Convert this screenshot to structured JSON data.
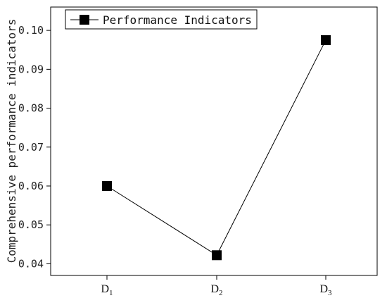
{
  "chart_data": {
    "type": "line",
    "categories": [
      {
        "base": "D",
        "sub": "1"
      },
      {
        "base": "D",
        "sub": "2"
      },
      {
        "base": "D",
        "sub": "3"
      }
    ],
    "series": [
      {
        "name": "Performance Indicators",
        "values": [
          0.06,
          0.0422,
          0.0975
        ]
      }
    ],
    "ylabel": "Comprehensive performance indicators",
    "xlabel": "",
    "ylim": [
      0.037,
      0.106
    ],
    "yticks": [
      0.04,
      0.05,
      0.06,
      0.07,
      0.08,
      0.09,
      0.1
    ],
    "ytick_labels": [
      "0.04",
      "0.05",
      "0.06",
      "0.07",
      "0.08",
      "0.09",
      "0.10"
    ],
    "legend_position": "top-left",
    "grid": false,
    "marker": "square",
    "color": "#000000"
  }
}
